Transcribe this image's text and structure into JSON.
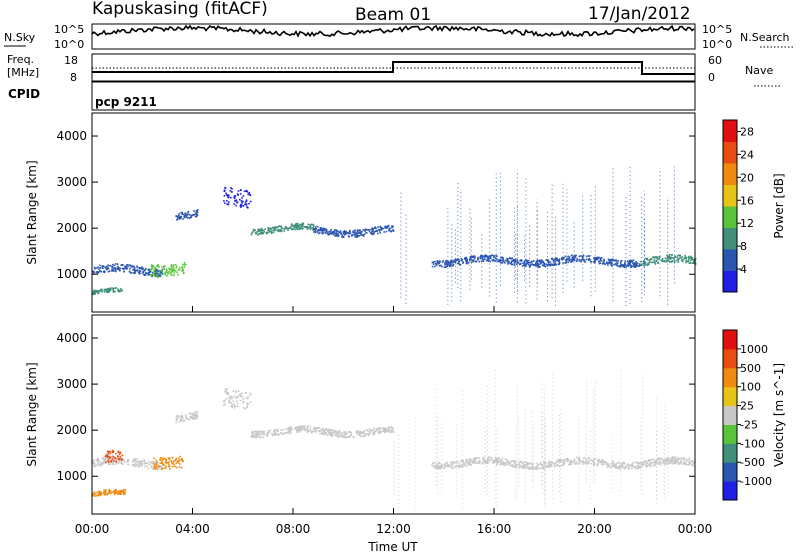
{
  "header": {
    "station": "Kapuskasing (fitACF)",
    "beam": "Beam 01",
    "date": "17/Jan/2012"
  },
  "noise_panel": {
    "left_label": "N.Sky",
    "left_ticks": [
      "10^5",
      "10^0"
    ],
    "right_ticks": [
      "10^5",
      "10^0"
    ],
    "right_label": "N.Search"
  },
  "freq_panel": {
    "left_label_1": "Freq.",
    "left_label_2": "[MHz]",
    "left_ticks": [
      "18",
      "8"
    ],
    "right_ticks": [
      "60",
      "0"
    ],
    "right_label": "Nave"
  },
  "cpid": {
    "label": "CPID",
    "value": "pcp 9211"
  },
  "chart_data": [
    {
      "type": "heatmap",
      "name": "power",
      "ylabel": "Slant Range [km]",
      "xlabel": "Time UT",
      "x_ticks": [
        "00:00",
        "04:00",
        "08:00",
        "12:00",
        "16:00",
        "20:00",
        "00:00"
      ],
      "xlim_hours": [
        0,
        24
      ],
      "y_ticks": [
        1000,
        2000,
        3000,
        4000
      ],
      "ylim": [
        180,
        4500
      ],
      "colorbar": {
        "label": "Power [dB]",
        "ticks": [
          "4",
          "8",
          "12",
          "16",
          "20",
          "24",
          "28"
        ],
        "range": [
          0,
          30
        ],
        "colors": [
          "#1f1fe6",
          "#2a55b0",
          "#3f8f7a",
          "#59c43a",
          "#e8c318",
          "#f08b10",
          "#e84c10",
          "#e01010"
        ]
      },
      "bands": [
        {
          "start_h": 0.0,
          "end_h": 2.8,
          "range_km": 1100,
          "width_km": 170,
          "color": "#2a55b0"
        },
        {
          "start_h": 0.0,
          "end_h": 1.2,
          "range_km": 620,
          "width_km": 90,
          "color": "#3f8f7a"
        },
        {
          "start_h": 2.3,
          "end_h": 3.7,
          "range_km": 1150,
          "width_km": 260,
          "color": "#59c43a"
        },
        {
          "start_h": 3.3,
          "end_h": 4.2,
          "range_km": 2300,
          "width_km": 160,
          "color": "#2a55b0"
        },
        {
          "start_h": 5.2,
          "end_h": 6.3,
          "range_km": 2700,
          "width_km": 380,
          "color": "#1f1fe6"
        },
        {
          "start_h": 6.3,
          "end_h": 8.8,
          "range_km": 2000,
          "width_km": 130,
          "color": "#3f8f7a"
        },
        {
          "start_h": 8.8,
          "end_h": 12.0,
          "range_km": 1950,
          "width_km": 150,
          "color": "#2a55b0"
        },
        {
          "start_h": 13.5,
          "end_h": 21.8,
          "range_km": 1300,
          "width_km": 150,
          "color": "#2a55b0"
        },
        {
          "start_h": 21.8,
          "end_h": 24.0,
          "range_km": 1300,
          "width_km": 160,
          "color": "#3f8f7a"
        }
      ]
    },
    {
      "type": "heatmap",
      "name": "velocity",
      "ylabel": "Slant Range [km]",
      "xlabel": "Time UT",
      "x_ticks": [
        "00:00",
        "04:00",
        "08:00",
        "12:00",
        "16:00",
        "20:00",
        "00:00"
      ],
      "xlim_hours": [
        0,
        24
      ],
      "y_ticks": [
        1000,
        2000,
        3000,
        4000
      ],
      "ylim": [
        180,
        4500
      ],
      "colorbar": {
        "label": "Velocity [m s^-1]",
        "ticks": [
          "1000",
          "500",
          "100",
          "25",
          "-25",
          "-100",
          "-500",
          "-1000"
        ],
        "colors": [
          "#1f1fe6",
          "#2a55b0",
          "#3f8f7a",
          "#59c43a",
          "#c8c8c8",
          "#e8c318",
          "#f08b10",
          "#e84c10",
          "#e01010"
        ]
      },
      "bands": [
        {
          "start_h": 0.0,
          "end_h": 2.8,
          "range_km": 1300,
          "width_km": 170,
          "color": "#c8c8c8"
        },
        {
          "start_h": 0.0,
          "end_h": 1.3,
          "range_km": 620,
          "width_km": 110,
          "color": "#f08b10"
        },
        {
          "start_h": 0.5,
          "end_h": 1.2,
          "range_km": 1400,
          "width_km": 260,
          "color": "#e84c10"
        },
        {
          "start_h": 2.4,
          "end_h": 3.6,
          "range_km": 1350,
          "width_km": 260,
          "color": "#f08b10"
        },
        {
          "start_h": 3.3,
          "end_h": 4.2,
          "range_km": 2300,
          "width_km": 160,
          "color": "#c8c8c8"
        },
        {
          "start_h": 5.2,
          "end_h": 6.3,
          "range_km": 2700,
          "width_km": 380,
          "color": "#c8c8c8"
        },
        {
          "start_h": 6.3,
          "end_h": 12.0,
          "range_km": 1980,
          "width_km": 140,
          "color": "#c8c8c8"
        },
        {
          "start_h": 13.5,
          "end_h": 24.0,
          "range_km": 1300,
          "width_km": 150,
          "color": "#c8c8c8"
        }
      ]
    }
  ]
}
